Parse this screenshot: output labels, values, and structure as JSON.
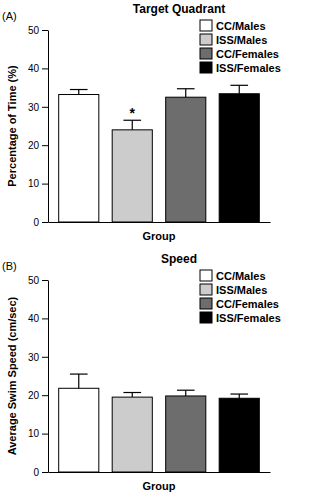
{
  "chart_data": [
    {
      "type": "bar",
      "panel_label": "(A)",
      "title": "Target Quadrant",
      "x_label": "Group",
      "y_label": "Percentage of Time (%)",
      "categories": [
        null
      ],
      "series": [
        {
          "name": "CC/Males",
          "color": "#ffffff",
          "values": [
            33.2
          ],
          "errors": [
            1.3
          ]
        },
        {
          "name": "ISS/Males",
          "color": "#cccccc",
          "values": [
            24.0
          ],
          "errors": [
            2.5
          ]
        },
        {
          "name": "CC/Females",
          "color": "#6d6d6d",
          "values": [
            32.5
          ],
          "errors": [
            2.2
          ]
        },
        {
          "name": "ISS/Females",
          "color": "#000000",
          "values": [
            33.4
          ],
          "errors": [
            2.2
          ]
        }
      ],
      "ylim": [
        0,
        50
      ],
      "yticks": [
        0,
        10,
        20,
        30,
        40,
        50
      ],
      "legend": "top-right",
      "annotations": [
        {
          "text": "*",
          "series": 1,
          "index": 0
        }
      ]
    },
    {
      "type": "bar",
      "panel_label": "(B)",
      "title": "Speed",
      "x_label": "Group",
      "y_label": "Average Swim Speed  (cm/sec)",
      "categories": [
        null
      ],
      "series": [
        {
          "name": "CC/Males",
          "color": "#ffffff",
          "values": [
            21.8
          ],
          "errors": [
            3.7
          ]
        },
        {
          "name": "ISS/Males",
          "color": "#cccccc",
          "values": [
            19.5
          ],
          "errors": [
            1.2
          ]
        },
        {
          "name": "CC/Females",
          "color": "#6d6d6d",
          "values": [
            19.8
          ],
          "errors": [
            1.5
          ]
        },
        {
          "name": "ISS/Females",
          "color": "#000000",
          "values": [
            19.2
          ],
          "errors": [
            1.1
          ]
        }
      ],
      "ylim": [
        0,
        50
      ],
      "yticks": [
        0,
        10,
        20,
        30,
        40,
        50
      ],
      "legend": "top-right"
    }
  ]
}
